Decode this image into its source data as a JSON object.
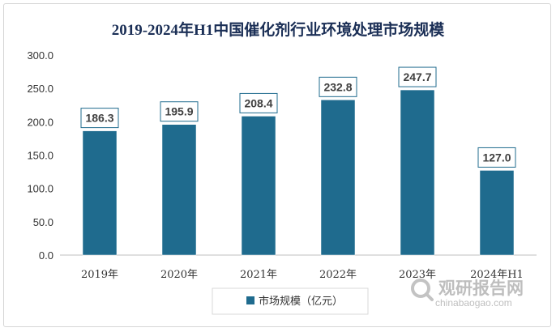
{
  "chart_data": {
    "type": "bar",
    "title": "2019-2024年H1中国催化剂行业环境处理市场规模",
    "categories": [
      "2019年",
      "2020年",
      "2021年",
      "2022年",
      "2023年",
      "2024年H1"
    ],
    "series": [
      {
        "name": "市场规模（亿元）",
        "values": [
          186.3,
          195.9,
          208.4,
          232.8,
          247.7,
          127.0
        ],
        "color": "#1f6b8e"
      }
    ],
    "data_labels": [
      "186.3",
      "195.9",
      "208.4",
      "232.8",
      "247.7",
      "127.0"
    ],
    "ylim": [
      0,
      300
    ],
    "yticks": [
      "0.0",
      "50.0",
      "100.0",
      "150.0",
      "200.0",
      "250.0",
      "300.0"
    ],
    "grid": false,
    "legend_position": "bottom-center",
    "xlabel": "",
    "ylabel": ""
  },
  "watermark": {
    "brand_cn": "观研报告网",
    "brand_en": "chinabaogao.com",
    "icon": "magnifier-logo-icon"
  },
  "colors": {
    "bar": "#1f6b8e",
    "label_border": "#1f6b8e",
    "title": "#1b2f56"
  }
}
